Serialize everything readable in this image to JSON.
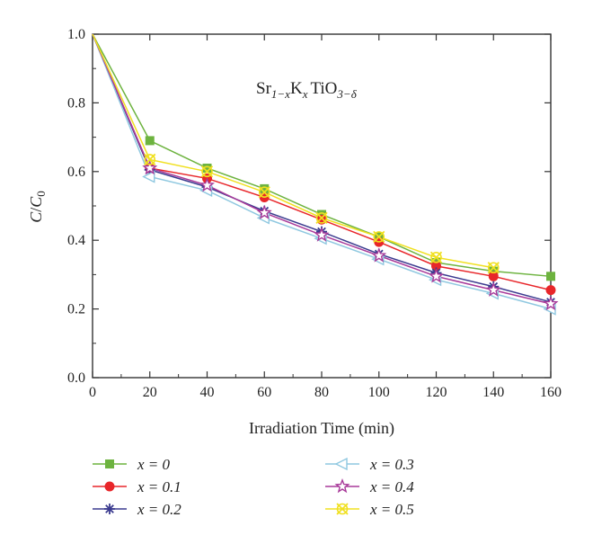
{
  "chart_data": {
    "type": "line",
    "annotation": {
      "base": "Sr",
      "sub1": "1−x",
      "mid": "K",
      "sub2": "x",
      "mid2": "TiO",
      "sub3": "3−δ"
    },
    "xlabel": "Irradiation Time (min)",
    "ylabel": {
      "main": "C",
      "slash": "/",
      "main2": "C",
      "sub": "0"
    },
    "xlim": [
      0,
      160
    ],
    "ylim": [
      0,
      1.0
    ],
    "xticks": [
      "0",
      "20",
      "40",
      "60",
      "80",
      "100",
      "120",
      "140",
      "160"
    ],
    "yticks": [
      "0.0",
      "0.2",
      "0.4",
      "0.6",
      "0.8",
      "1.0"
    ],
    "grid": false,
    "legend_position": "below",
    "x": [
      0,
      20,
      40,
      60,
      80,
      100,
      120,
      140,
      160
    ],
    "series": [
      {
        "name": "x = 0",
        "color": "#6db33f",
        "marker": "square",
        "values": [
          1.0,
          0.69,
          0.61,
          0.55,
          0.475,
          0.41,
          0.335,
          0.31,
          0.295
        ]
      },
      {
        "name": "x = 0.1",
        "color": "#e8262a",
        "marker": "circle",
        "values": [
          1.0,
          0.61,
          0.58,
          0.525,
          0.46,
          0.395,
          0.325,
          0.295,
          0.255
        ]
      },
      {
        "name": "x = 0.2",
        "color": "#3b3b8f",
        "marker": "asterisk",
        "values": [
          1.0,
          0.605,
          0.555,
          0.485,
          0.425,
          0.36,
          0.305,
          0.265,
          0.22
        ]
      },
      {
        "name": "x = 0.3",
        "color": "#8fc8e0",
        "marker": "triangle-left",
        "values": [
          1.0,
          0.585,
          0.545,
          0.465,
          0.405,
          0.345,
          0.285,
          0.245,
          0.2
        ]
      },
      {
        "name": "x = 0.4",
        "color": "#a83a9a",
        "marker": "star",
        "values": [
          1.0,
          0.61,
          0.56,
          0.48,
          0.415,
          0.355,
          0.295,
          0.255,
          0.215
        ]
      },
      {
        "name": "x = 0.5",
        "color": "#f0e020",
        "marker": "x-circle",
        "values": [
          1.0,
          0.635,
          0.6,
          0.54,
          0.465,
          0.41,
          0.35,
          0.32,
          null
        ]
      }
    ]
  }
}
